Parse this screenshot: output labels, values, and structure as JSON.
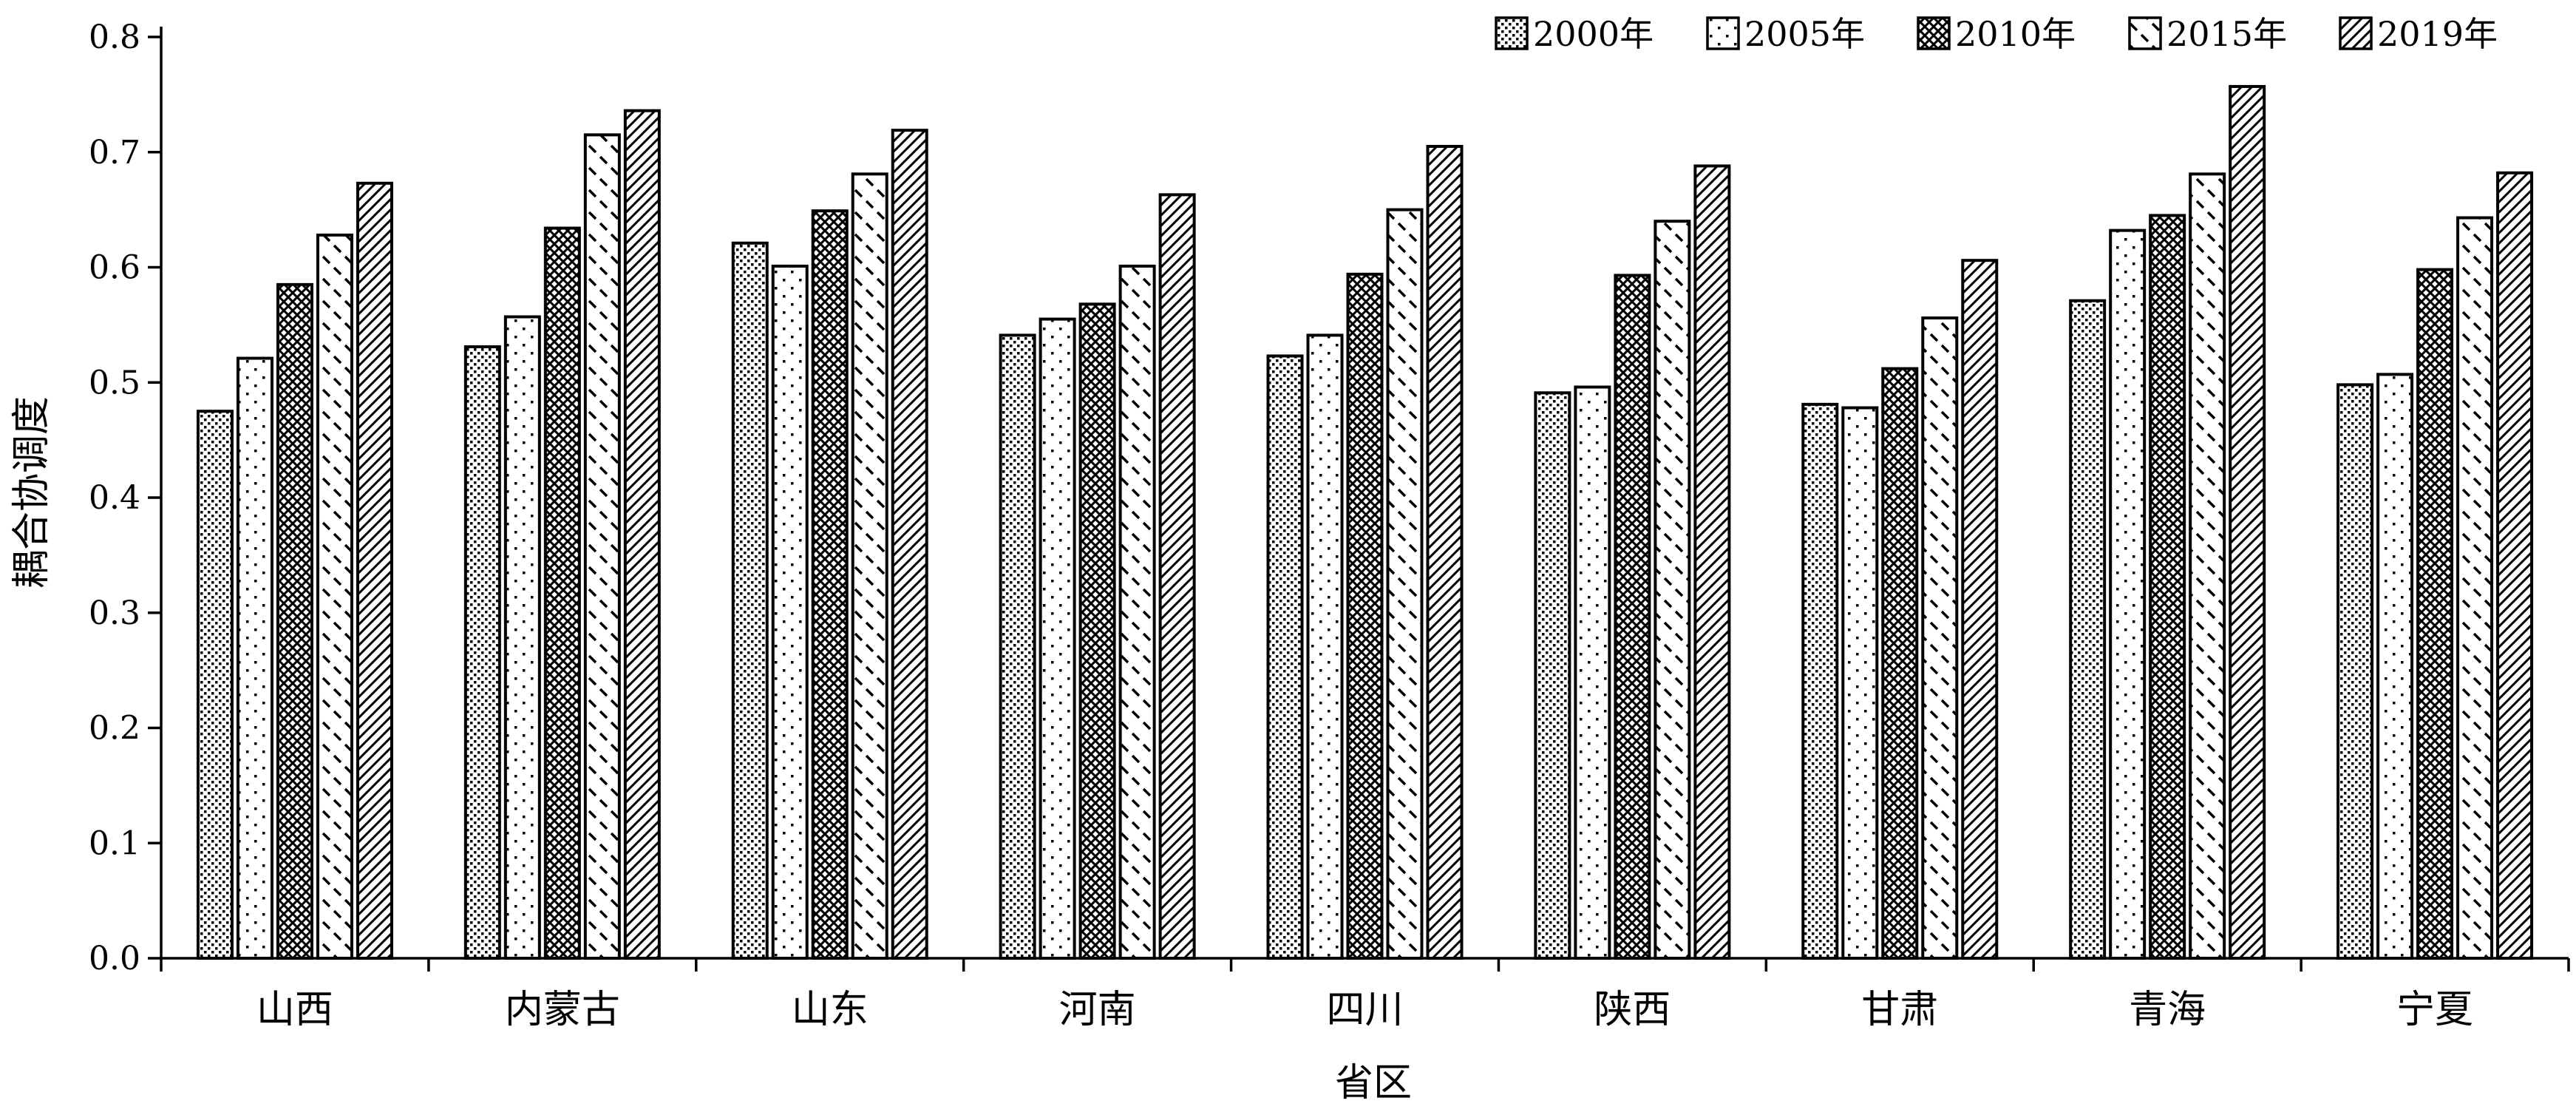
{
  "chart_data": {
    "type": "bar",
    "title": "",
    "xlabel": "省区",
    "ylabel": "耦合协调度",
    "ylim": [
      0,
      0.8
    ],
    "yticks": [
      "0.0",
      "0.1",
      "0.2",
      "0.3",
      "0.4",
      "0.5",
      "0.6",
      "0.7",
      "0.8"
    ],
    "ytick_values": [
      0,
      0.1,
      0.2,
      0.3,
      0.4,
      0.5,
      0.6,
      0.7,
      0.8
    ],
    "legend_position": "top-right",
    "grid": false,
    "categories": [
      "山西",
      "内蒙古",
      "山东",
      "河南",
      "四川",
      "陕西",
      "甘肃",
      "青海",
      "宁夏"
    ],
    "series": [
      {
        "name": "2000年",
        "pattern": "dots-dense",
        "values": [
          0.475,
          0.531,
          0.621,
          0.541,
          0.523,
          0.491,
          0.481,
          0.571,
          0.498
        ]
      },
      {
        "name": "2005年",
        "pattern": "dots-sparse",
        "values": [
          0.521,
          0.557,
          0.601,
          0.555,
          0.541,
          0.496,
          0.478,
          0.632,
          0.507
        ]
      },
      {
        "name": "2010年",
        "pattern": "crosshatch",
        "values": [
          0.585,
          0.634,
          0.649,
          0.568,
          0.594,
          0.593,
          0.512,
          0.645,
          0.598
        ]
      },
      {
        "name": "2015年",
        "pattern": "dashed-diagonal",
        "values": [
          0.628,
          0.715,
          0.681,
          0.601,
          0.65,
          0.64,
          0.556,
          0.681,
          0.643
        ]
      },
      {
        "name": "2019年",
        "pattern": "diagonal-lines",
        "values": [
          0.673,
          0.736,
          0.719,
          0.663,
          0.705,
          0.688,
          0.606,
          0.757,
          0.682
        ]
      }
    ]
  }
}
